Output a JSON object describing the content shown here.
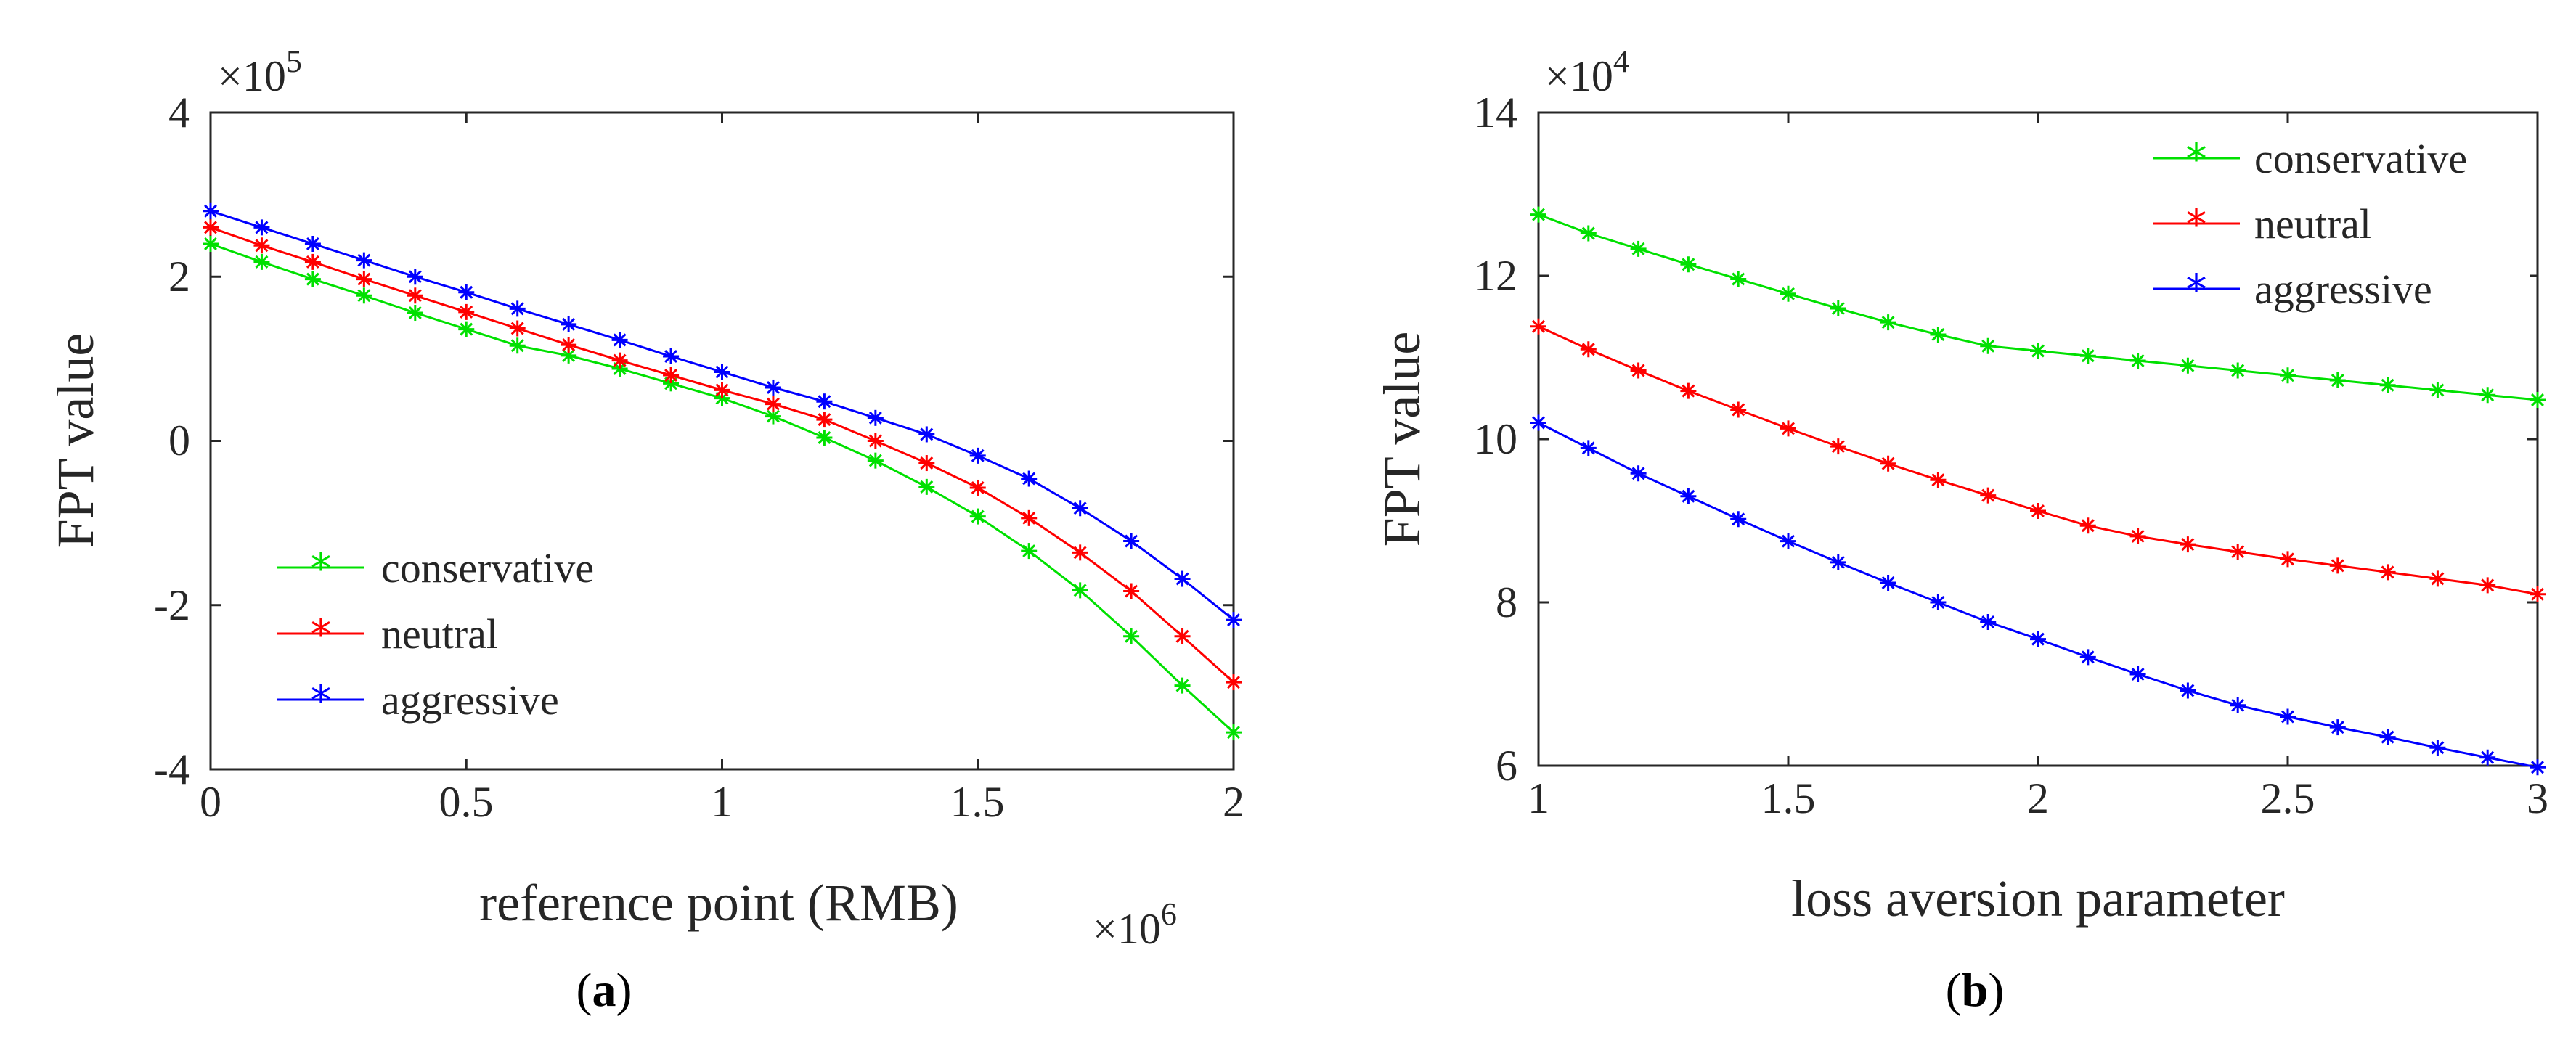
{
  "chart_data": [
    {
      "type": "line",
      "panel": "a",
      "caption": "a",
      "xlabel": "reference point (RMB)",
      "x_exponent": "6",
      "ylabel": "FPT value",
      "y_exponent": "5",
      "xlim": [
        0,
        2
      ],
      "ylim": [
        -4,
        4
      ],
      "xticks": [
        0,
        0.5,
        1,
        1.5,
        2
      ],
      "xtick_labels": [
        "0",
        "0.5",
        "1",
        "1.5",
        "2"
      ],
      "yticks": [
        -4,
        -2,
        0,
        2,
        4
      ],
      "ytick_labels": [
        "-4",
        "-2",
        "0",
        "2",
        "4"
      ],
      "legend_position": "bottom-left",
      "x": [
        0,
        0.1,
        0.2,
        0.3,
        0.4,
        0.5,
        0.6,
        0.7,
        0.8,
        0.9,
        1.0,
        1.1,
        1.2,
        1.3,
        1.4,
        1.5,
        1.6,
        1.7,
        1.8,
        1.9,
        2.0
      ],
      "series": [
        {
          "name": "conservative",
          "color": "#00e000",
          "values": [
            2.4,
            2.18,
            1.97,
            1.77,
            1.56,
            1.36,
            1.16,
            1.04,
            0.88,
            0.7,
            0.52,
            0.3,
            0.04,
            -0.24,
            -0.56,
            -0.92,
            -1.34,
            -1.82,
            -2.38,
            -2.98,
            -3.55
          ]
        },
        {
          "name": "neutral",
          "color": "#ff0000",
          "values": [
            2.6,
            2.38,
            2.18,
            1.97,
            1.77,
            1.57,
            1.37,
            1.17,
            0.98,
            0.8,
            0.62,
            0.45,
            0.26,
            0.0,
            -0.27,
            -0.57,
            -0.94,
            -1.36,
            -1.83,
            -2.38,
            -2.94
          ]
        },
        {
          "name": "aggressive",
          "color": "#0000ff",
          "values": [
            2.8,
            2.6,
            2.4,
            2.2,
            2.0,
            1.81,
            1.61,
            1.42,
            1.23,
            1.03,
            0.84,
            0.65,
            0.48,
            0.28,
            0.08,
            -0.18,
            -0.46,
            -0.82,
            -1.22,
            -1.68,
            -2.18
          ]
        }
      ]
    },
    {
      "type": "line",
      "panel": "b",
      "caption": "b",
      "xlabel": "loss aversion parameter",
      "x_exponent": "",
      "ylabel": "FPT value",
      "y_exponent": "4",
      "xlim": [
        1,
        3
      ],
      "ylim": [
        6,
        14
      ],
      "xticks": [
        1,
        1.5,
        2,
        2.5,
        3
      ],
      "xtick_labels": [
        "1",
        "1.5",
        "2",
        "2.5",
        "3"
      ],
      "yticks": [
        6,
        8,
        10,
        12,
        14
      ],
      "ytick_labels": [
        "6",
        "8",
        "10",
        "12",
        "14"
      ],
      "legend_position": "top-right",
      "x": [
        1.0,
        1.1,
        1.2,
        1.3,
        1.4,
        1.5,
        1.6,
        1.7,
        1.8,
        1.9,
        2.0,
        2.1,
        2.2,
        2.3,
        2.4,
        2.5,
        2.6,
        2.7,
        2.8,
        2.9,
        3.0
      ],
      "series": [
        {
          "name": "conservative",
          "color": "#00e000",
          "values": [
            12.75,
            12.52,
            12.33,
            12.14,
            11.96,
            11.78,
            11.6,
            11.43,
            11.28,
            11.14,
            11.08,
            11.02,
            10.96,
            10.9,
            10.84,
            10.78,
            10.72,
            10.66,
            10.6,
            10.54,
            10.48
          ]
        },
        {
          "name": "neutral",
          "color": "#ff0000",
          "values": [
            11.38,
            11.1,
            10.84,
            10.59,
            10.36,
            10.13,
            9.91,
            9.7,
            9.5,
            9.31,
            9.12,
            8.94,
            8.81,
            8.71,
            8.62,
            8.53,
            8.45,
            8.37,
            8.29,
            8.21,
            8.1
          ]
        },
        {
          "name": "aggressive",
          "color": "#0000ff",
          "values": [
            10.2,
            9.89,
            9.58,
            9.3,
            9.02,
            8.75,
            8.49,
            8.24,
            8.0,
            7.76,
            7.55,
            7.33,
            7.12,
            6.92,
            6.74,
            6.6,
            6.47,
            6.35,
            6.22,
            6.1,
            5.98
          ]
        }
      ]
    }
  ]
}
